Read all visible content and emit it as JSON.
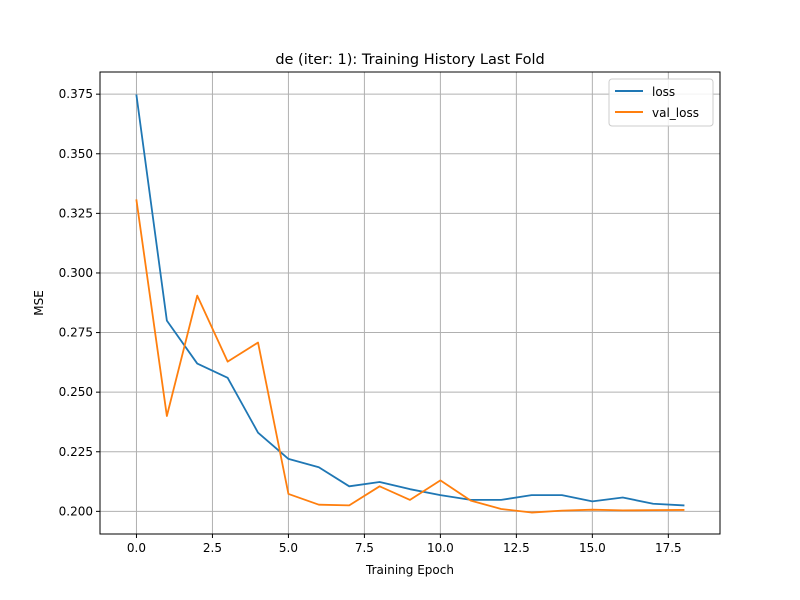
{
  "chart_data": {
    "type": "line",
    "title": "de (iter: 1): Training History Last Fold",
    "xlabel": "Training Epoch",
    "ylabel": "MSE",
    "xlim": [
      -1.2,
      19.2
    ],
    "ylim": [
      0.1905,
      0.3843
    ],
    "xticks": [
      0.0,
      2.5,
      5.0,
      7.5,
      10.0,
      12.5,
      15.0,
      17.5
    ],
    "xtick_labels": [
      "0.0",
      "2.5",
      "5.0",
      "7.5",
      "10.0",
      "12.5",
      "15.0",
      "17.5"
    ],
    "yticks": [
      0.2,
      0.225,
      0.25,
      0.275,
      0.3,
      0.325,
      0.35,
      0.375
    ],
    "ytick_labels": [
      "0.200",
      "0.225",
      "0.250",
      "0.275",
      "0.300",
      "0.325",
      "0.350",
      "0.375"
    ],
    "grid": true,
    "legend_position": "top-right",
    "x": [
      0,
      1,
      2,
      3,
      4,
      5,
      6,
      7,
      8,
      9,
      10,
      11,
      12,
      13,
      14,
      15,
      16,
      17,
      18
    ],
    "series": [
      {
        "name": "loss",
        "color": "#1f77b4",
        "values": [
          0.3745,
          0.28,
          0.262,
          0.256,
          0.233,
          0.222,
          0.2185,
          0.2105,
          0.2123,
          0.2093,
          0.2068,
          0.2048,
          0.2048,
          0.2068,
          0.2068,
          0.2042,
          0.2058,
          0.2032,
          0.2025
        ]
      },
      {
        "name": "val_loss",
        "color": "#ff7f0e",
        "values": [
          0.3305,
          0.24,
          0.2905,
          0.2628,
          0.2708,
          0.2073,
          0.2028,
          0.2025,
          0.2105,
          0.2048,
          0.213,
          0.2045,
          0.201,
          0.1995,
          0.2003,
          0.2007,
          0.2004,
          0.2005,
          0.2006
        ]
      }
    ]
  }
}
